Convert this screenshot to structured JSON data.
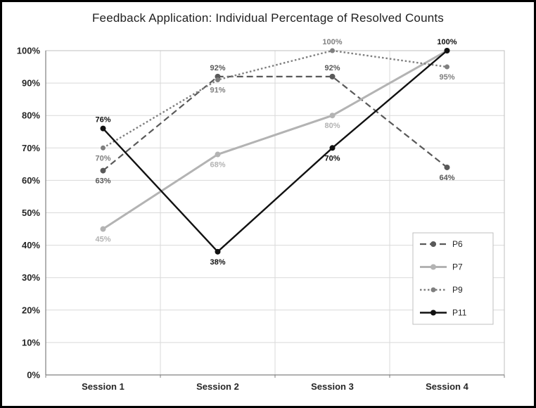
{
  "chart_data": {
    "type": "line",
    "title": "Feedback Application: Individual Percentage of Resolved Counts",
    "categories": [
      "Session 1",
      "Session 2",
      "Session 3",
      "Session 4"
    ],
    "xlabel": "",
    "ylabel": "",
    "ylim": [
      0,
      100
    ],
    "y_tick_step": 10,
    "y_tick_labels": [
      "0%",
      "10%",
      "20%",
      "30%",
      "40%",
      "50%",
      "60%",
      "70%",
      "80%",
      "90%",
      "100%"
    ],
    "grid": true,
    "legend_position": "middle-right",
    "colors": {
      "grid": "#d9d9d9",
      "axis": "#808080",
      "plot_border": "#bfbfbf",
      "text": "#262626",
      "legend_border": "#bfbfbf"
    },
    "series": [
      {
        "name": "P6",
        "color": "#595959",
        "style": "dashed",
        "stroke_width": 2.2,
        "marker_radius": 4,
        "values": [
          63,
          92,
          92,
          64
        ],
        "labels": [
          "63%",
          "92%",
          "92%",
          "64%"
        ],
        "label_pos": [
          "below",
          "above",
          "above",
          "below"
        ]
      },
      {
        "name": "P7",
        "color": "#b3b3b3",
        "style": "solid",
        "stroke_width": 3,
        "marker_radius": 4,
        "values": [
          45,
          68,
          80,
          100
        ],
        "labels": [
          "45%",
          "68%",
          "80%",
          ""
        ],
        "label_pos": [
          "below",
          "below",
          "below",
          "none"
        ]
      },
      {
        "name": "P9",
        "color": "#7f7f7f",
        "style": "dotted",
        "stroke_width": 2.4,
        "marker_radius": 3.5,
        "values": [
          70,
          91,
          100,
          95
        ],
        "labels": [
          "70%",
          "91%",
          "100%",
          "95%"
        ],
        "label_pos": [
          "below",
          "below",
          "above",
          "below"
        ]
      },
      {
        "name": "P11",
        "color": "#111111",
        "style": "solid",
        "stroke_width": 2.4,
        "marker_radius": 4,
        "values": [
          76,
          38,
          70,
          100
        ],
        "labels": [
          "76%",
          "38%",
          "70%",
          "100%"
        ],
        "label_pos": [
          "above",
          "below",
          "below",
          "above"
        ]
      }
    ]
  }
}
